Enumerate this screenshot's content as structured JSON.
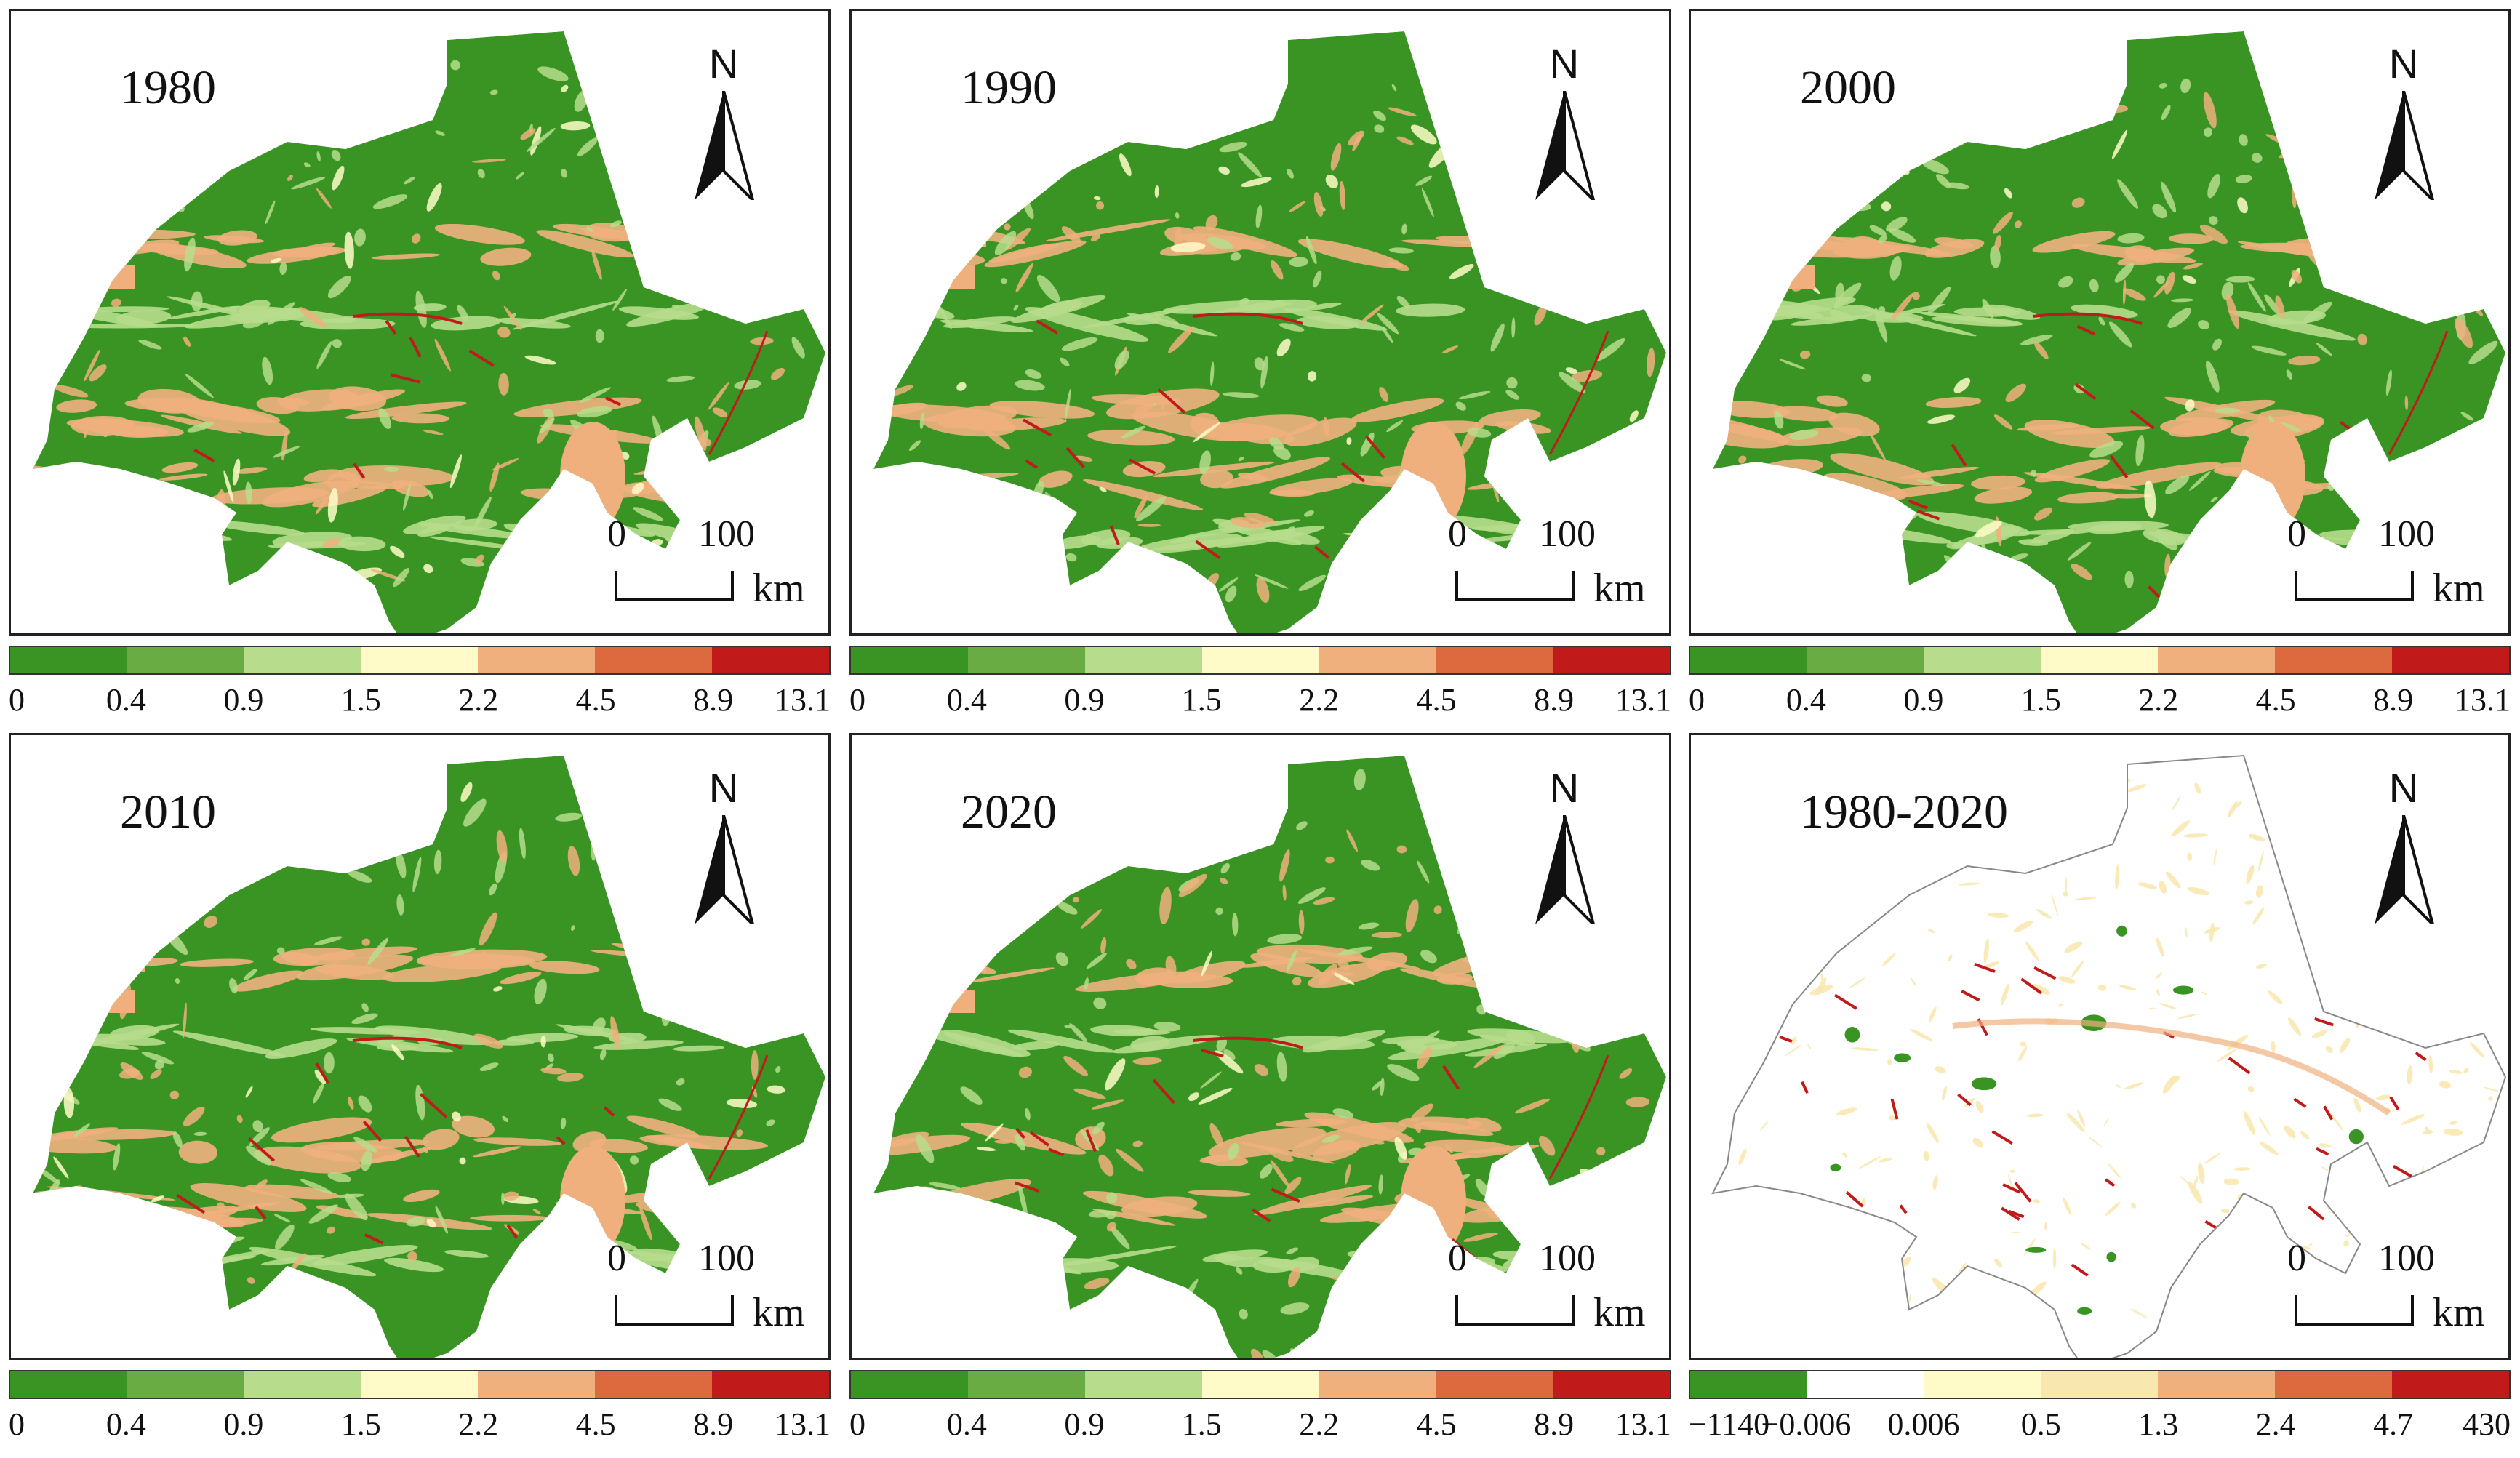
{
  "panels": [
    {
      "title": "1980"
    },
    {
      "title": "1990"
    },
    {
      "title": "2000"
    },
    {
      "title": "2010"
    },
    {
      "title": "2020"
    },
    {
      "title": "1980-2020"
    }
  ],
  "north_label": "N",
  "scale": {
    "left": "0",
    "right": "100",
    "unit": "km"
  },
  "legend_main": {
    "colors": [
      "#3a9424",
      "#6aac44",
      "#b7dd8c",
      "#fffbc8",
      "#f0b07e",
      "#dd6a3f",
      "#c01a1a"
    ],
    "labels": [
      "0",
      "0.4",
      "0.9",
      "1.5",
      "2.2",
      "4.5",
      "8.9",
      "13.1"
    ]
  },
  "legend_change": {
    "colors": [
      "#3a9424",
      "#ffffff",
      "#fffbc8",
      "#f8e8b0",
      "#f0b07e",
      "#dd6a3f",
      "#c01a1a"
    ],
    "labels": [
      "−1140",
      "−0.006",
      "0.006",
      "0.5",
      "1.3",
      "2.4",
      "4.7",
      "430"
    ]
  }
}
